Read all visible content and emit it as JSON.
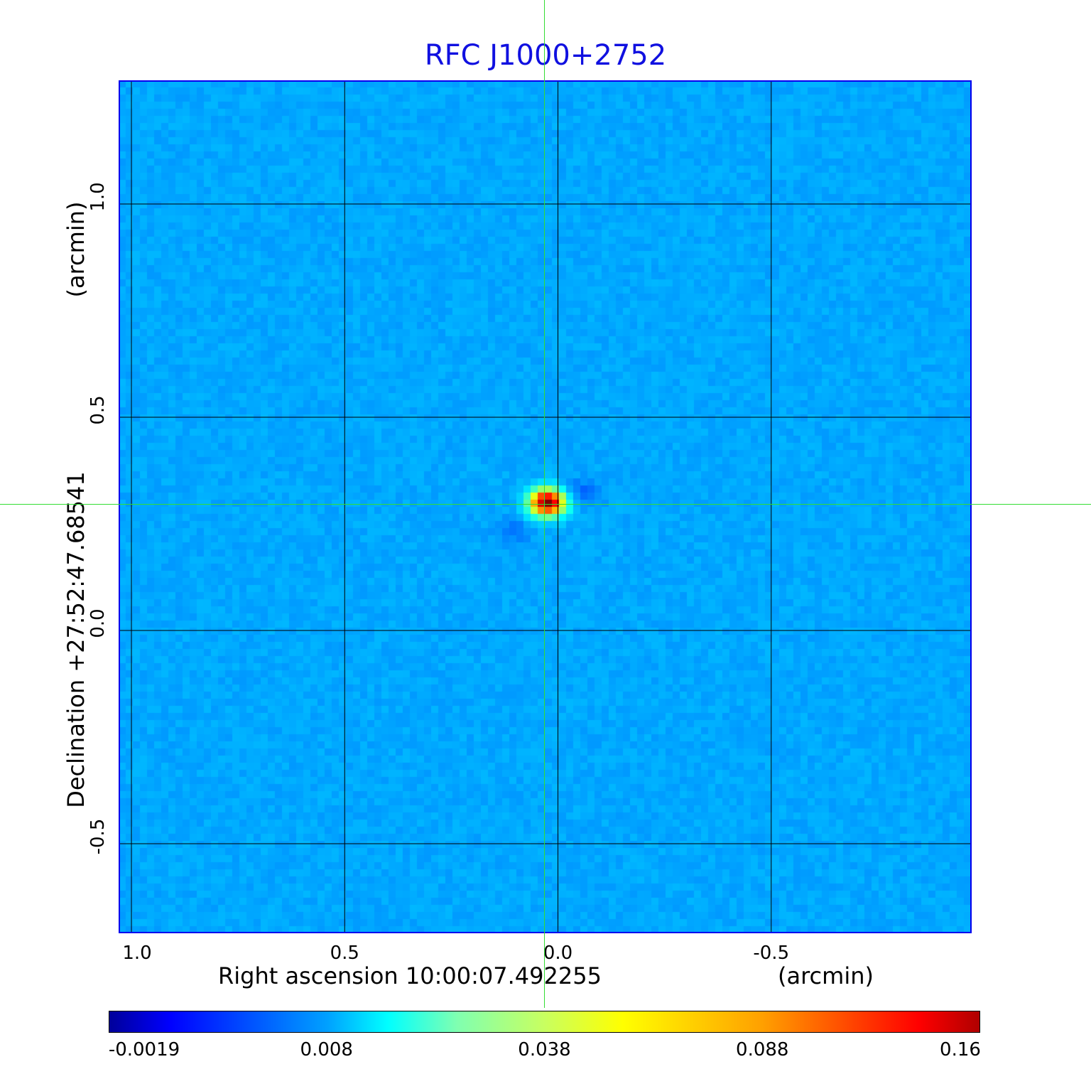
{
  "chart_data": {
    "type": "heatmap",
    "title": "RFC J1000+2752",
    "xlabel": "Right ascension  10:00:07.492255",
    "xunit": "(arcmin)",
    "ylabel": "Declination  +27:52:47.68541",
    "yunit": "(arcmin)",
    "xlim": [
      1.03,
      -0.97
    ],
    "ylim": [
      -0.71,
      1.29
    ],
    "xticks": [
      "1.0",
      "0.5",
      "0.0",
      "-0.5"
    ],
    "xtick_values": [
      1.0,
      0.5,
      0.0,
      -0.5
    ],
    "yticks": [
      "1.0",
      "0.5",
      "0.0",
      "-0.5"
    ],
    "ytick_values": [
      1.0,
      0.5,
      0.0,
      -0.5
    ],
    "grid": true,
    "colormap": "jet",
    "colorbar": {
      "ticks": [
        "-0.0019",
        "0.008",
        "0.038",
        "0.088",
        "0.16"
      ],
      "range": [
        -0.0019,
        0.16
      ],
      "placement": "bottom"
    },
    "source": {
      "x": -0.0,
      "y": 0.3,
      "peak": 0.16
    },
    "crosshair": {
      "x": 0.03,
      "y": 0.3,
      "color": "#33dd33"
    },
    "background_color": "#0030ff",
    "title_color": "#1010e0"
  }
}
